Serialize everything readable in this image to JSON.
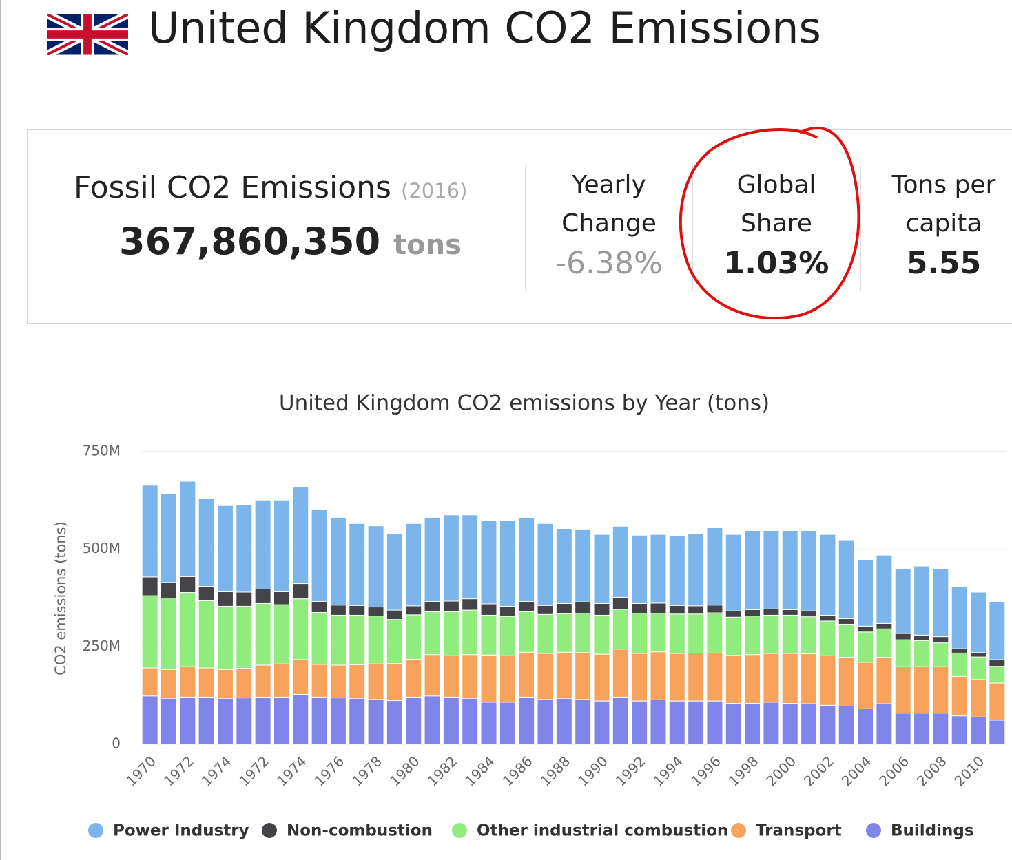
{
  "header": {
    "title": "United Kingdom CO2 Emissions"
  },
  "stats": {
    "fossil": {
      "label": "Fossil CO2 Emissions",
      "year": "(2016)",
      "value": "367,860,350",
      "unit": "tons"
    },
    "yearly_change": {
      "label": "Yearly Change",
      "value": "-6.38%"
    },
    "global_share": {
      "label": "Global Share",
      "value": "1.03%"
    },
    "per_capita": {
      "label": "Tons per capita",
      "value": "5.55"
    }
  },
  "chart_data": {
    "type": "stacked-bar",
    "title": "United Kingdom CO2 emissions by Year (tons)",
    "y_label": "CO2 emissions (tons)",
    "categories": [
      "1970",
      null,
      "1972",
      null,
      "1974",
      null,
      "1972",
      null,
      "1974",
      null,
      "1976",
      null,
      "1978",
      null,
      "1980",
      null,
      "1982",
      null,
      "1984",
      null,
      "1986",
      null,
      "1988",
      null,
      "1990",
      null,
      "1992",
      null,
      "1994",
      null,
      "1996",
      null,
      "1998",
      null,
      "2000",
      null,
      "2002",
      null,
      "2004",
      null,
      "2006",
      null,
      "2008",
      null,
      "2010",
      null
    ],
    "ylim": [
      0,
      750000000
    ],
    "yticks": [
      0,
      {
        "value": 250000000,
        "label": "250M"
      },
      {
        "value": 500000000,
        "label": "500M"
      },
      {
        "value": 750000000,
        "label": "750M"
      }
    ],
    "grid": true,
    "legend": "bottom",
    "series": [
      {
        "name": "Power Industry",
        "color": "#7cb5ec",
        "values": [
          235000000,
          227000000,
          244000000,
          226000000,
          221000000,
          225000000,
          228000000,
          235000000,
          248000000,
          235000000,
          223000000,
          210000000,
          208000000,
          197000000,
          211000000,
          214000000,
          221000000,
          215000000,
          213000000,
          219000000,
          214000000,
          210000000,
          191000000,
          185000000,
          177000000,
          182000000,
          175000000,
          176000000,
          178000000,
          186000000,
          198000000,
          196000000,
          203000000,
          201000000,
          203000000,
          206000000,
          207000000,
          202000000,
          170000000,
          175000000,
          166000000,
          177000000,
          174000000,
          160000000,
          155000000,
          148000000
        ]
      },
      {
        "name": "Non-combustion",
        "color": "#434348",
        "values": [
          48000000,
          40000000,
          41000000,
          37000000,
          37000000,
          36000000,
          37000000,
          33000000,
          39000000,
          28000000,
          26000000,
          25000000,
          23000000,
          24000000,
          23000000,
          26000000,
          27000000,
          29000000,
          29000000,
          26000000,
          26000000,
          23000000,
          26000000,
          29000000,
          30000000,
          31000000,
          25000000,
          26000000,
          22000000,
          21000000,
          20000000,
          16000000,
          16000000,
          16000000,
          14000000,
          15000000,
          15000000,
          14000000,
          15000000,
          14000000,
          16000000,
          14000000,
          16000000,
          11000000,
          11000000,
          17000000
        ]
      },
      {
        "name": "Other industrial combustion",
        "color": "#90ed7d",
        "values": [
          185000000,
          183000000,
          190000000,
          172000000,
          162000000,
          159000000,
          158000000,
          152000000,
          156000000,
          133000000,
          128000000,
          127000000,
          123000000,
          113000000,
          114000000,
          110000000,
          113000000,
          114000000,
          102000000,
          101000000,
          104000000,
          100000000,
          99000000,
          101000000,
          100000000,
          102000000,
          103000000,
          99000000,
          101000000,
          100000000,
          103000000,
          98000000,
          99000000,
          98000000,
          98000000,
          95000000,
          89000000,
          85000000,
          78000000,
          73000000,
          69000000,
          67000000,
          61000000,
          60000000,
          58000000,
          43000000
        ]
      },
      {
        "name": "Transport",
        "color": "#f7a35c",
        "values": [
          72000000,
          74000000,
          78000000,
          75000000,
          74000000,
          76000000,
          82000000,
          85000000,
          89000000,
          84000000,
          84000000,
          86000000,
          91000000,
          95000000,
          97000000,
          106000000,
          106000000,
          112000000,
          121000000,
          119000000,
          115000000,
          118000000,
          118000000,
          120000000,
          120000000,
          123000000,
          122000000,
          123000000,
          122000000,
          123000000,
          123000000,
          123000000,
          125000000,
          125000000,
          128000000,
          128000000,
          127000000,
          125000000,
          119000000,
          119000000,
          119000000,
          119000000,
          119000000,
          101000000,
          96000000,
          95000000
        ]
      },
      {
        "name": "Buildings",
        "color": "#8085e9",
        "values": [
          124000000,
          118000000,
          121000000,
          121000000,
          118000000,
          119000000,
          121000000,
          121000000,
          128000000,
          121000000,
          119000000,
          118000000,
          115000000,
          112000000,
          121000000,
          124000000,
          121000000,
          118000000,
          108000000,
          108000000,
          121000000,
          115000000,
          118000000,
          115000000,
          111000000,
          121000000,
          111000000,
          114000000,
          111000000,
          111000000,
          111000000,
          105000000,
          105000000,
          108000000,
          105000000,
          104000000,
          100000000,
          98000000,
          91000000,
          104000000,
          80000000,
          80000000,
          80000000,
          73000000,
          70000000,
          62000000
        ]
      }
    ]
  }
}
